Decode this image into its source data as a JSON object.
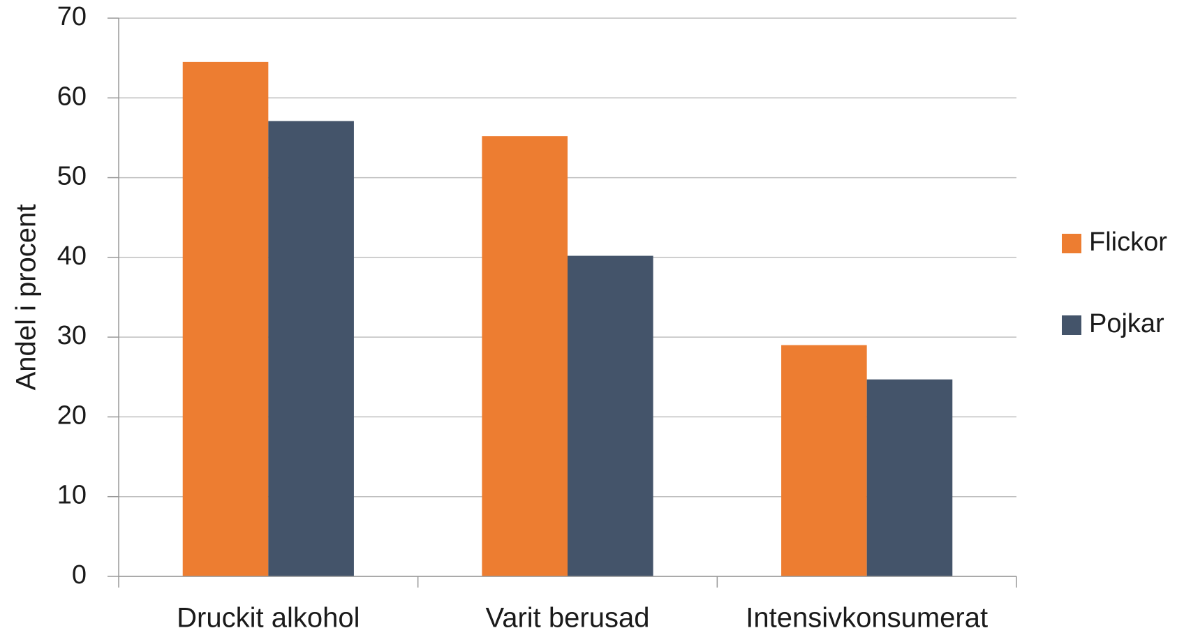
{
  "chart_data": {
    "type": "bar",
    "y_label": "Andel i procent",
    "categories": [
      "Druckit alkohol",
      "Varit berusad",
      "Intensivkonsumerat"
    ],
    "series": [
      {
        "name": "Flickor",
        "color": "#ed7d31",
        "values": [
          64.5,
          55.2,
          29.0
        ]
      },
      {
        "name": "Pojkar",
        "color": "#44546a",
        "values": [
          57.1,
          40.2,
          24.7
        ]
      }
    ],
    "ylim": [
      0,
      70
    ],
    "yticks": [
      0,
      10,
      20,
      30,
      40,
      50,
      60,
      70
    ],
    "grid": true,
    "legend": "right"
  }
}
